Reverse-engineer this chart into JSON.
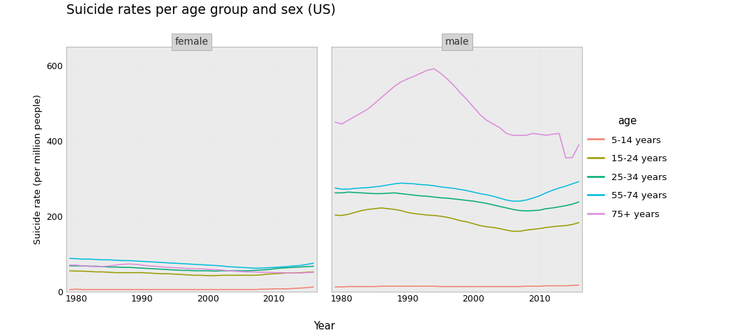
{
  "title": "Suicide rates per age group and sex (US)",
  "ylabel": "Suicide rate (per million people)",
  "xlabel": "Year",
  "panels": [
    "female",
    "male"
  ],
  "age_groups": [
    "5-14 years",
    "15-24 years",
    "25-34 years",
    "55-74 years",
    "75+ years"
  ],
  "colors": {
    "5-14 years": "#f08070",
    "15-24 years": "#999900",
    "25-34 years": "#00aa77",
    "55-74 years": "#00bbdd",
    "75+ years": "#dd88dd"
  },
  "ylim": [
    0,
    650
  ],
  "yticks": [
    0,
    200,
    400,
    600
  ],
  "years": [
    1979,
    1980,
    1981,
    1982,
    1983,
    1984,
    1985,
    1986,
    1987,
    1988,
    1989,
    1990,
    1991,
    1992,
    1993,
    1994,
    1995,
    1996,
    1997,
    1998,
    1999,
    2000,
    2001,
    2002,
    2003,
    2004,
    2005,
    2006,
    2007,
    2008,
    2009,
    2010,
    2011,
    2012,
    2013,
    2014,
    2015,
    2016
  ],
  "female": {
    "5-14 years": [
      5,
      6,
      5,
      5,
      5,
      5,
      5,
      5,
      5,
      5,
      5,
      5,
      5,
      5,
      5,
      5,
      5,
      5,
      5,
      5,
      5,
      5,
      5,
      5,
      5,
      5,
      5,
      5,
      5,
      6,
      6,
      7,
      7,
      7,
      8,
      9,
      10,
      12
    ],
    "15-24 years": [
      55,
      54,
      54,
      53,
      52,
      52,
      51,
      50,
      50,
      50,
      50,
      50,
      49,
      48,
      47,
      47,
      46,
      45,
      44,
      43,
      43,
      42,
      42,
      43,
      43,
      43,
      43,
      43,
      43,
      44,
      46,
      47,
      48,
      49,
      49,
      50,
      51,
      52
    ],
    "25-34 years": [
      68,
      68,
      68,
      67,
      67,
      66,
      65,
      65,
      64,
      64,
      63,
      62,
      61,
      60,
      59,
      58,
      57,
      56,
      56,
      55,
      55,
      55,
      54,
      55,
      55,
      55,
      55,
      55,
      56,
      57,
      58,
      60,
      62,
      63,
      64,
      65,
      66,
      67
    ],
    "55-74 years": [
      88,
      87,
      86,
      86,
      85,
      84,
      84,
      83,
      82,
      82,
      81,
      80,
      79,
      78,
      77,
      76,
      75,
      74,
      73,
      72,
      71,
      70,
      69,
      68,
      66,
      65,
      64,
      63,
      62,
      62,
      63,
      64,
      65,
      66,
      68,
      69,
      72,
      75
    ],
    "75+ years": [
      70,
      70,
      68,
      67,
      66,
      66,
      68,
      70,
      72,
      73,
      72,
      70,
      68,
      67,
      65,
      64,
      63,
      62,
      61,
      60,
      60,
      59,
      58,
      57,
      55,
      54,
      53,
      52,
      52,
      51,
      51,
      50,
      50,
      49,
      49,
      49,
      50,
      51
    ]
  },
  "male": {
    "5-14 years": [
      12,
      12,
      13,
      13,
      13,
      13,
      13,
      14,
      14,
      14,
      14,
      14,
      14,
      14,
      14,
      14,
      13,
      13,
      13,
      13,
      13,
      13,
      13,
      13,
      13,
      13,
      13,
      13,
      13,
      14,
      14,
      14,
      15,
      15,
      15,
      15,
      16,
      17
    ],
    "15-24 years": [
      203,
      202,
      205,
      210,
      215,
      218,
      220,
      222,
      220,
      218,
      215,
      210,
      207,
      205,
      203,
      202,
      200,
      197,
      193,
      188,
      185,
      180,
      175,
      172,
      170,
      167,
      163,
      160,
      160,
      163,
      165,
      167,
      170,
      172,
      174,
      175,
      178,
      183
    ],
    "25-34 years": [
      262,
      262,
      264,
      263,
      262,
      261,
      260,
      260,
      261,
      262,
      260,
      258,
      256,
      254,
      253,
      251,
      249,
      248,
      246,
      244,
      242,
      240,
      237,
      234,
      230,
      226,
      222,
      218,
      215,
      214,
      215,
      216,
      220,
      222,
      225,
      228,
      232,
      238
    ],
    "55-74 years": [
      275,
      272,
      272,
      274,
      275,
      276,
      278,
      280,
      283,
      286,
      288,
      287,
      286,
      284,
      283,
      281,
      278,
      276,
      274,
      271,
      268,
      264,
      260,
      257,
      253,
      248,
      243,
      240,
      240,
      243,
      248,
      254,
      262,
      269,
      275,
      280,
      286,
      292
    ],
    "75+ years": [
      450,
      445,
      455,
      465,
      475,
      485,
      500,
      515,
      530,
      545,
      557,
      565,
      572,
      580,
      588,
      592,
      580,
      565,
      548,
      528,
      510,
      490,
      470,
      455,
      445,
      435,
      420,
      415,
      415,
      415,
      420,
      418,
      415,
      418,
      420,
      355,
      356,
      390
    ]
  },
  "bg_color": "#ffffff",
  "panel_header_color": "#d3d3d3",
  "grid_color": "#e8e8e8",
  "plot_bg": "#ebebeb"
}
